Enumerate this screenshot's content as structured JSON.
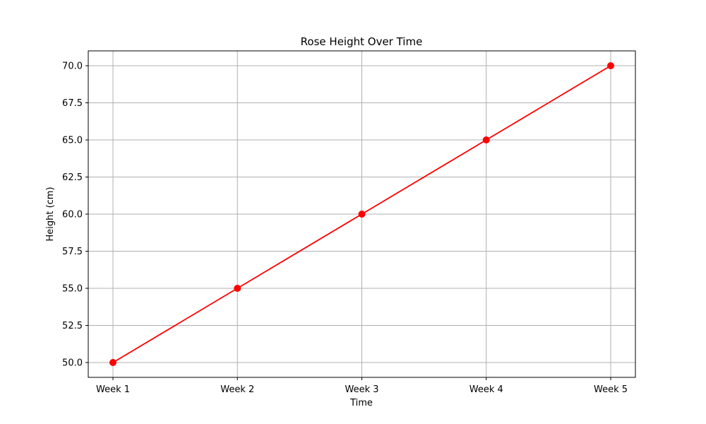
{
  "chart_data": {
    "type": "line",
    "title": "Rose Height Over Time",
    "xlabel": "Time",
    "ylabel": "Height (cm)",
    "categories": [
      "Week 1",
      "Week 2",
      "Week 3",
      "Week 4",
      "Week 5"
    ],
    "series": [
      {
        "values": [
          50.0,
          55.0,
          60.0,
          65.0,
          70.0
        ],
        "color": "#ff0000",
        "marker": "circle"
      }
    ],
    "ylim": [
      49.0,
      71.0
    ],
    "yticks": [
      "50.0",
      "52.5",
      "55.0",
      "57.5",
      "60.0",
      "62.5",
      "65.0",
      "67.5",
      "70.0"
    ],
    "grid": true,
    "grid_color": "#b0b0b0",
    "legend": false
  }
}
